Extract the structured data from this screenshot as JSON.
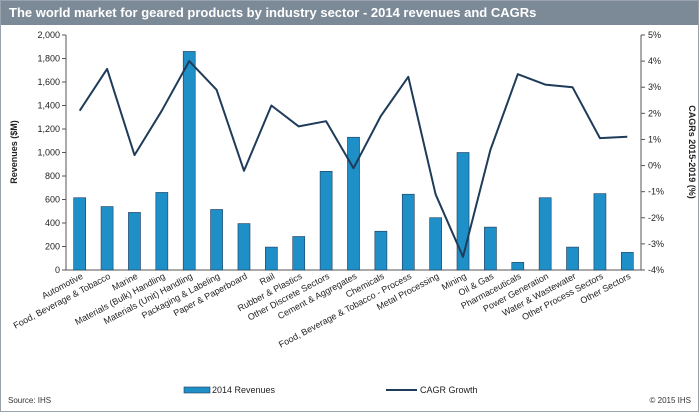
{
  "title": "The world market for geared products by industry sector - 2014 revenues and CAGRs",
  "footer": {
    "source": "Source: IHS",
    "copyright": "© 2015 IHS"
  },
  "chart_data": {
    "type": "bar",
    "title": "The world market for geared products by industry sector - 2014 revenues and CAGRs",
    "categories": [
      "Automotive",
      "Food, Beverage & Tobacco",
      "Marine",
      "Materials (Bulk) Handling",
      "Materials (Unit) Handling",
      "Packaging & Labeling",
      "Paper & Paperboard",
      "Rail",
      "Rubber & Plastics",
      "Other Discrete Sectors",
      "Cement & Aggregates",
      "Chemicals",
      "Food, Beverage & Tobacco - Process",
      "Metal Processing",
      "Mining",
      "Oil & Gas",
      "Pharmaceuticals",
      "Power Generation",
      "Water & Wastewater",
      "Other Process Sectors",
      "Other Sectors"
    ],
    "series": [
      {
        "name": "2014 Revenues",
        "axis": "left",
        "type": "bar",
        "color": "#1f8fc8",
        "values": [
          615,
          540,
          490,
          660,
          1860,
          515,
          395,
          195,
          285,
          840,
          1130,
          330,
          645,
          445,
          1000,
          365,
          65,
          615,
          195,
          650,
          150
        ]
      },
      {
        "name": "CAGR Growth",
        "axis": "right",
        "type": "line",
        "color": "#1f3b5a",
        "values": [
          2.1,
          3.7,
          0.4,
          2.1,
          4.0,
          2.9,
          -0.2,
          2.3,
          1.5,
          1.7,
          -0.1,
          1.9,
          3.4,
          -1.1,
          -3.5,
          0.6,
          3.5,
          3.1,
          3.0,
          1.05,
          1.1
        ]
      }
    ],
    "ylabel": "Revenues ($M)",
    "ylim": [
      0,
      2000
    ],
    "yticks": [
      "0",
      "200",
      "400",
      "600",
      "800",
      "1,000",
      "1,200",
      "1,400",
      "1,600",
      "1,800",
      "2,000"
    ],
    "y2label": "CAGRs 2015-2019 (%)",
    "y2lim": [
      -4,
      5
    ],
    "y2ticks": [
      "-4%",
      "-3%",
      "-2%",
      "-1%",
      "0%",
      "1%",
      "2%",
      "3%",
      "4%",
      "5%"
    ],
    "legend": [
      "2014 Revenues",
      "CAGR Growth"
    ],
    "legend_position": "bottom",
    "grid": false
  }
}
